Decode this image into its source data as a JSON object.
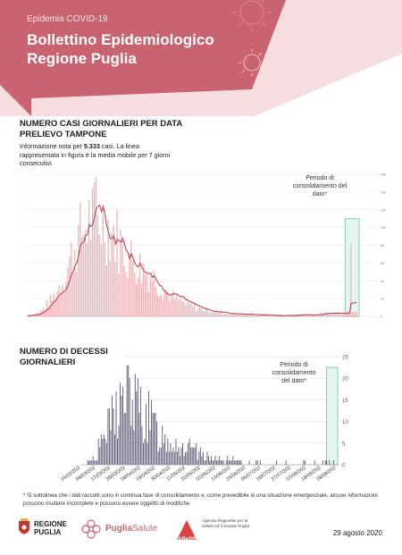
{
  "header": {
    "subtitle": "Epidemia COVID-19",
    "title": "Bollettino Epidemiologico Regione Puglia"
  },
  "colors": {
    "brand": "#c9636f",
    "brand_light": "#f6dde0",
    "bar_cases": "#f0b7bc",
    "line_cases": "#b84a5a",
    "bar_deaths": "#5d5a73",
    "consolidation": "#6ec2ad",
    "consolidation_fill": "#e4f4ef"
  },
  "cases_section": {
    "title": "NUMERO CASI GIORNALIERI PER DATA PRELIEVO TAMPONE",
    "intro_before": "Informazione nota per ",
    "intro_value": "5.333",
    "intro_after": " casi. La linea rappresentata in figura è la media mobile per 7 giorni consecutivi.",
    "period_label": "Periodo di consolidamento del dato*"
  },
  "deaths_section": {
    "title": "NUMERO DI DECESSI GIORNALIERI",
    "period_label": "Periodo di consolidamento del dato*"
  },
  "chart_data": [
    {
      "type": "bar",
      "overlay": "line",
      "description_series": [
        "daily cases",
        "7-day moving average"
      ],
      "x_start": "2020-02-24",
      "x_end": "2020-08-29",
      "ylim": [
        0,
        160
      ],
      "yticks": [
        0,
        20,
        40,
        60,
        80,
        100,
        120,
        140,
        160
      ],
      "grid": true,
      "consolidation_last_days": 7,
      "weekly_values": [
        1,
        4,
        20,
        45,
        85,
        108,
        110,
        95,
        72,
        58,
        48,
        32,
        20,
        13,
        9,
        6,
        4,
        3,
        2,
        2,
        1,
        1,
        2,
        2,
        3,
        4,
        5,
        10,
        15,
        22,
        80
      ],
      "peak_value": 157
    },
    {
      "type": "bar",
      "x_start": "2020-02-24",
      "x_end": "2020-08-29",
      "xticks": [
        "24/02/202",
        "06/03/202",
        "17/03/202",
        "28/03/202",
        "08/04/202",
        "19/04/202",
        "30/04/202",
        "11/05/202",
        "22/05/202",
        "02/06/202",
        "13/06/202",
        "24/06/202",
        "05/07/202",
        "16/07/202",
        "27/07/202",
        "07/08/202",
        "18/08/202",
        "29/08/202"
      ],
      "ylim": [
        0,
        25
      ],
      "yticks": [
        0,
        5,
        10,
        15,
        20,
        25
      ],
      "grid": true,
      "consolidation_last_days": 7,
      "weekly_values": [
        0,
        1,
        4,
        9,
        14,
        16,
        13,
        11,
        8,
        6,
        5,
        4,
        3,
        2,
        1.5,
        1,
        1,
        0.5,
        0.4,
        0.3,
        0.2,
        0.2,
        0.1,
        0.1,
        0.2,
        0.4,
        0.6,
        0.8
      ]
    }
  ],
  "footnote": "* Si sottolinea che i dati raccolti sono in continua fase di consolidamento e, come prevedibile in una situazione emergenziale, alcune informazioni possono risultare incomplete e possono essere oggetto di modifiche",
  "logos": {
    "regione_line1": "REGIONE",
    "regione_line2": "PUGLIA",
    "puglia_bold": "Puglia",
    "puglia_light": "Salute",
    "ares_name": "AReSS",
    "ares_text": "Agenzia Regionale per la Salute ed il Sociale Puglia"
  },
  "date": "29 agosto 2020"
}
